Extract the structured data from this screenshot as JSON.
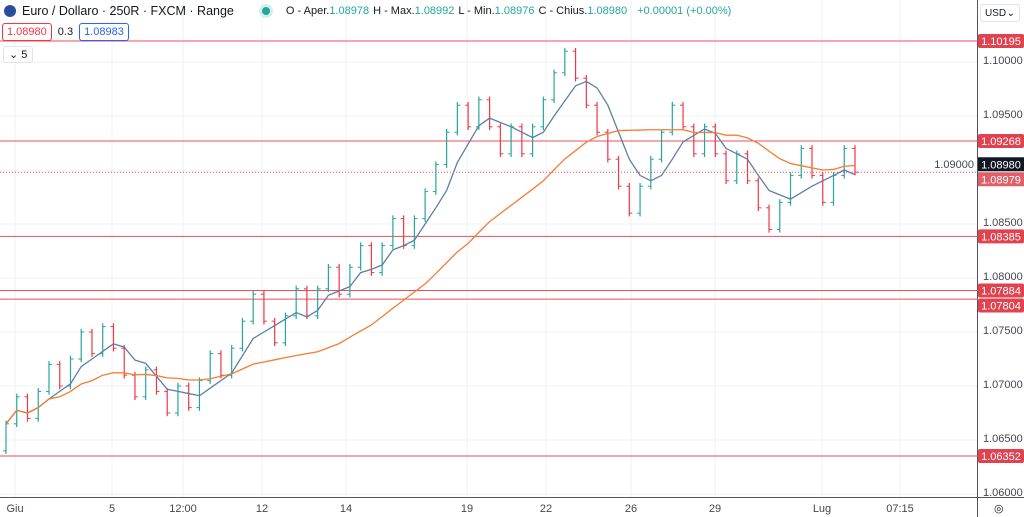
{
  "header": {
    "symbol_title": "Euro / Dollaro · 250R · FXCM · Range",
    "ohlc": [
      {
        "k": "O - Aper.",
        "v": "1.08978"
      },
      {
        "k": "H - Max.",
        "v": "1.08992"
      },
      {
        "k": "L - Min.",
        "v": "1.08976"
      },
      {
        "k": "C - Chius.",
        "v": "1.08980"
      }
    ],
    "change": "+0.00001 (+0.00%)",
    "sell_price": "1.08980",
    "spread": "0.3",
    "buy_price": "1.08983",
    "collapse_count": "5"
  },
  "currency": "USD",
  "colors": {
    "up": "#26a69a",
    "down": "#f23645",
    "ma_fast": "#5b7fa8",
    "ma_slow": "#f57c32",
    "level": "#e8505b"
  },
  "chart_data": {
    "type": "range-bar",
    "y_ticks": [
      "1.10000",
      "1.09500",
      "1.09000",
      "1.08500",
      "1.08000",
      "1.07500",
      "1.07000",
      "1.06500",
      "1.06000"
    ],
    "ylim": [
      1.06,
      1.1035
    ],
    "x_ticks": [
      "Giu",
      "5",
      "12:00",
      "12",
      "14",
      "19",
      "22",
      "26",
      "29",
      "Lug",
      "07:15"
    ],
    "levels": [
      {
        "value": "1.10195"
      },
      {
        "value": "1.09268"
      },
      {
        "value": "1.08385"
      },
      {
        "value": "1.07884"
      },
      {
        "value": "1.07804"
      },
      {
        "value": "1.06352"
      }
    ],
    "last_price": "1.08980",
    "ref_price": "1.08979",
    "closes": [
      1.0665,
      1.069,
      1.067,
      1.0695,
      1.072,
      1.07,
      1.0725,
      1.075,
      1.073,
      1.0755,
      1.0735,
      1.071,
      1.069,
      1.0715,
      1.0695,
      1.0675,
      1.07,
      1.068,
      1.0705,
      1.073,
      1.071,
      1.0735,
      1.076,
      1.0785,
      1.076,
      1.074,
      1.0765,
      1.079,
      1.0765,
      1.079,
      1.081,
      1.0785,
      1.081,
      1.083,
      1.0805,
      1.083,
      1.0855,
      1.083,
      1.0855,
      1.088,
      1.0905,
      1.0935,
      1.096,
      1.094,
      1.0965,
      1.094,
      1.0915,
      1.094,
      1.0915,
      1.094,
      1.0965,
      1.099,
      1.101,
      1.0985,
      1.096,
      1.0935,
      1.091,
      1.0885,
      1.086,
      1.0885,
      1.091,
      1.0935,
      1.096,
      1.094,
      1.0915,
      1.094,
      1.0915,
      1.089,
      1.0915,
      1.089,
      1.0865,
      1.0845,
      1.087,
      1.0895,
      1.092,
      1.0895,
      1.087,
      1.0895,
      1.092,
      1.0898
    ],
    "ma_fast_period": 5,
    "ma_slow_period": 20
  }
}
